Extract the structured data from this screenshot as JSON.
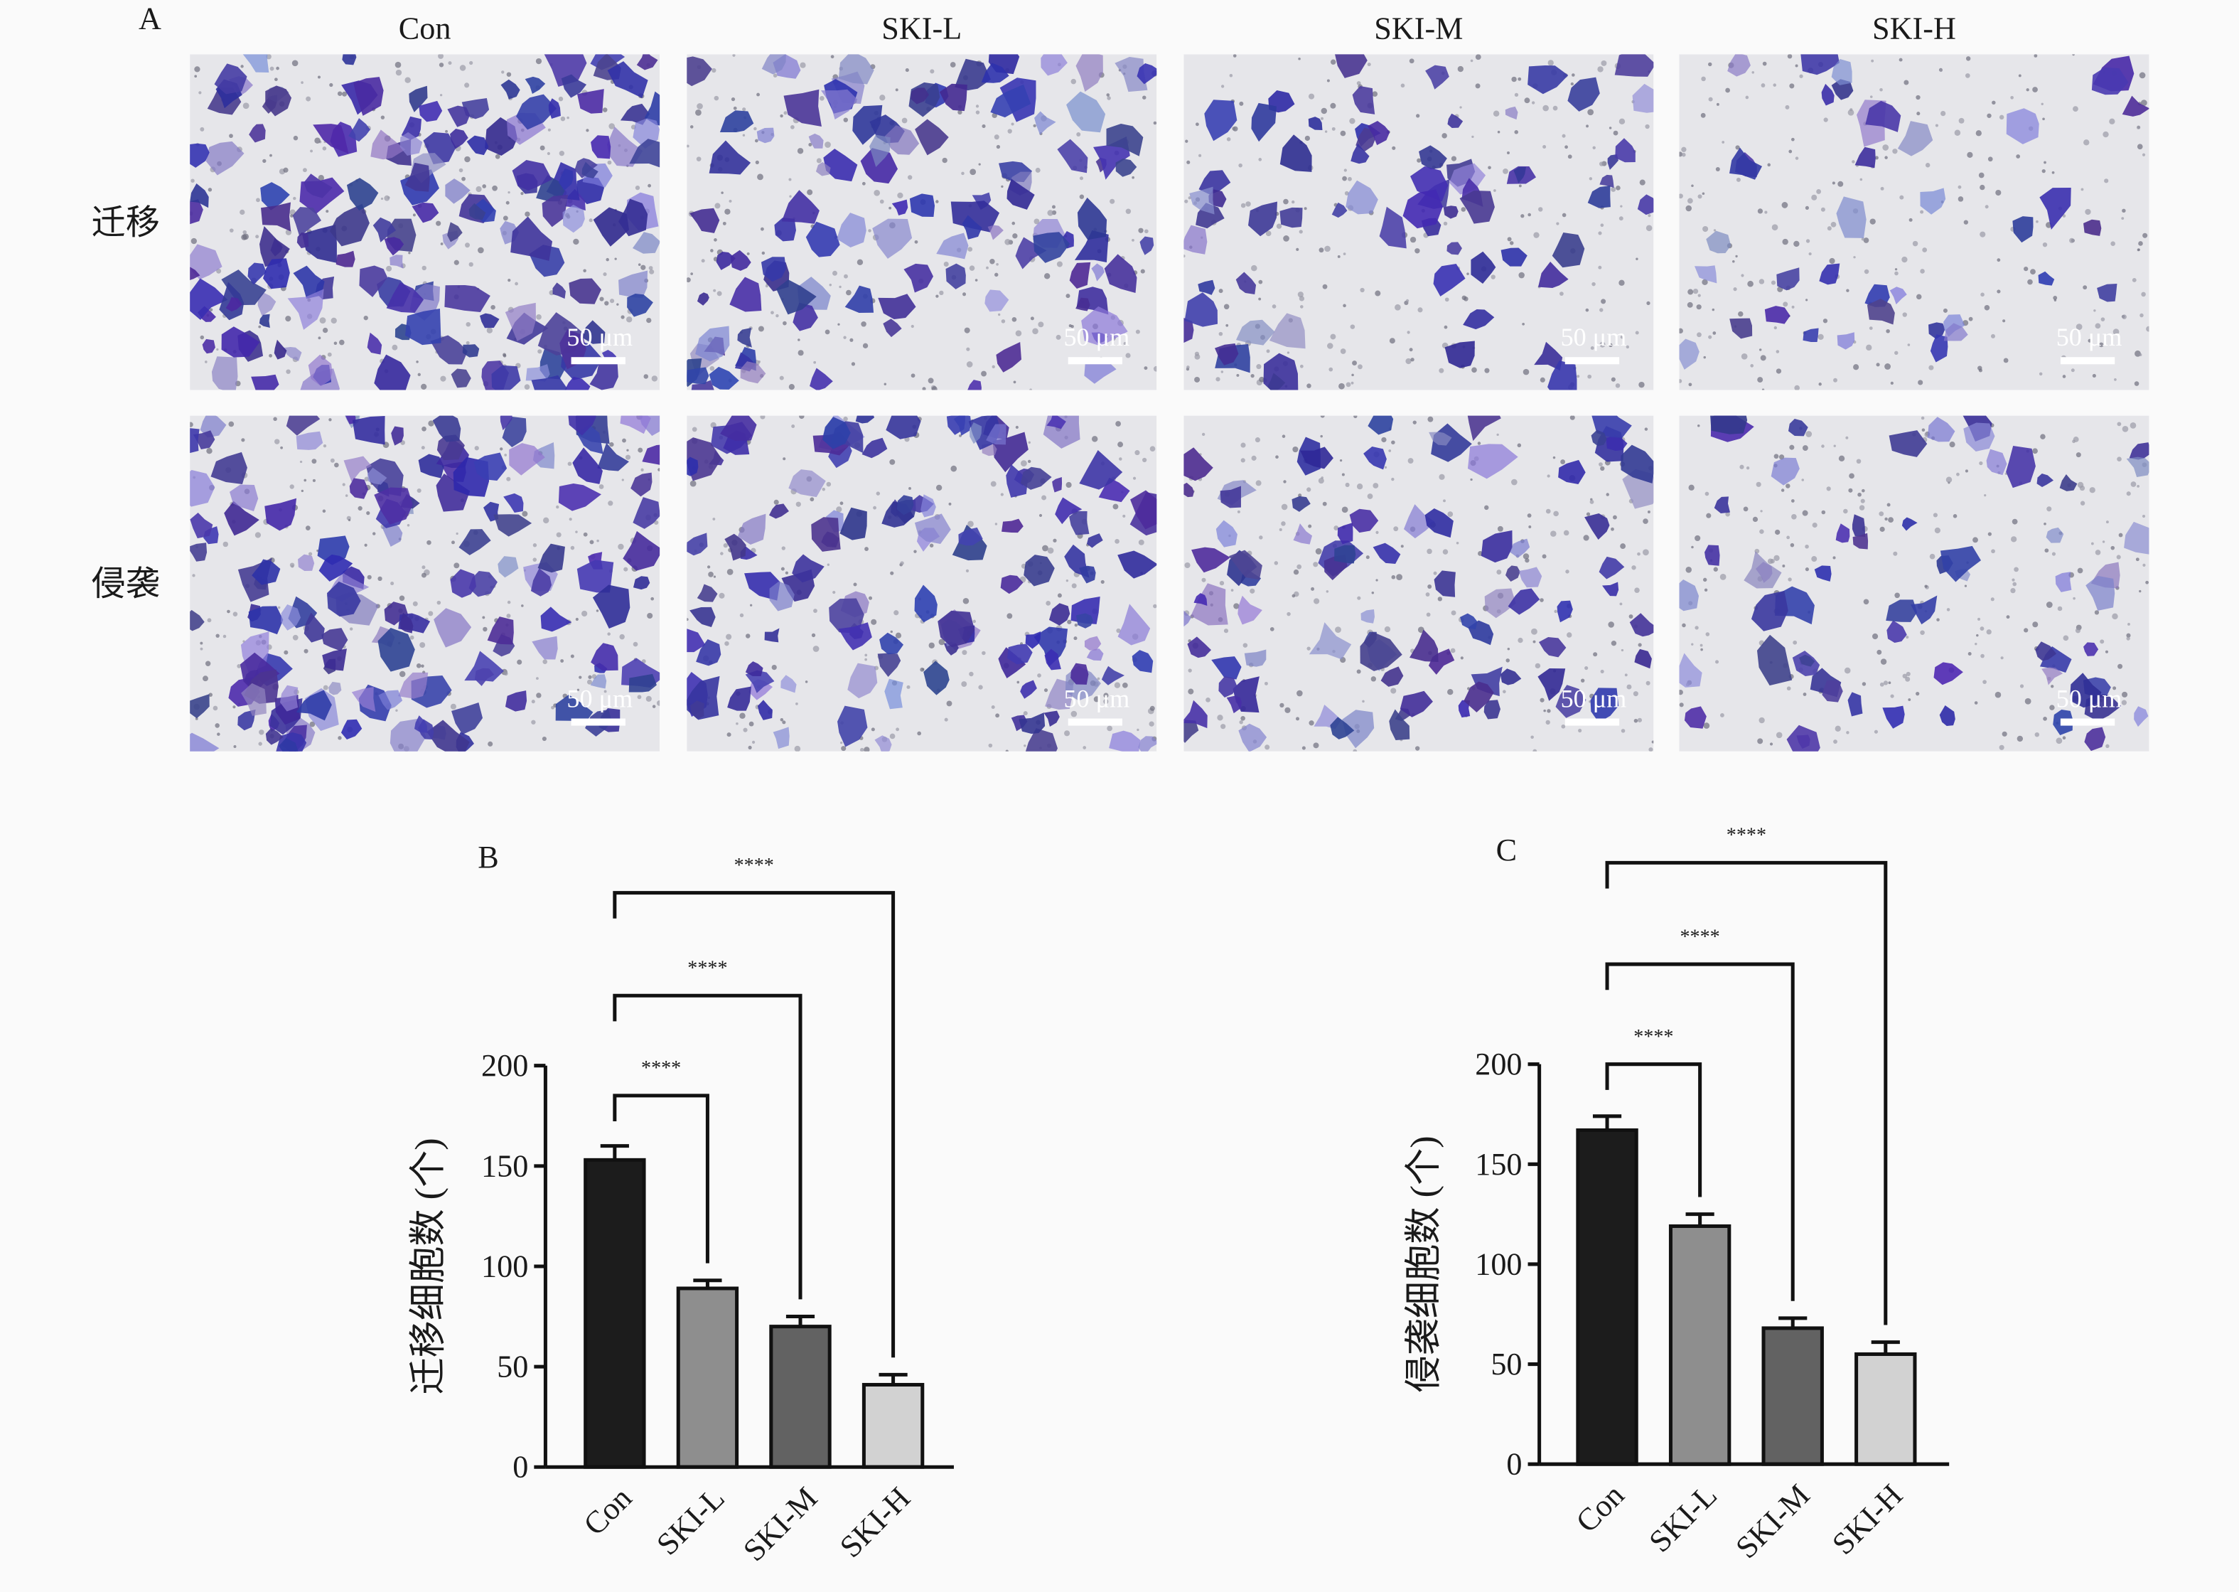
{
  "panel_a": {
    "label": "A",
    "columns": [
      "Con",
      "SKI-L",
      "SKI-M",
      "SKI-H"
    ],
    "rows": [
      "迁移",
      "侵袭"
    ],
    "scale_bar": "50 μm"
  },
  "chart_data": [
    {
      "type": "bar",
      "panel_label": "B",
      "y_label": "迁移细胞数 (个)",
      "categories": [
        "Con",
        "SKI-L",
        "SKI-M",
        "SKI-H"
      ],
      "values": [
        153,
        89,
        70,
        41
      ],
      "errors": [
        7,
        4,
        5,
        5
      ],
      "colors": [
        "#1c1c1c",
        "#8e8e8e",
        "#626262",
        "#d2d2d2"
      ],
      "ylim": [
        0,
        200
      ],
      "yticks": [
        0,
        50,
        100,
        150,
        200
      ],
      "significance": [
        {
          "from": "Con",
          "to": "SKI-L",
          "label": "****"
        },
        {
          "from": "Con",
          "to": "SKI-M",
          "label": "****"
        },
        {
          "from": "Con",
          "to": "SKI-H",
          "label": "****"
        }
      ]
    },
    {
      "type": "bar",
      "panel_label": "C",
      "y_label": "侵袭细胞数 (个)",
      "categories": [
        "Con",
        "SKI-L",
        "SKI-M",
        "SKI-H"
      ],
      "values": [
        167,
        119,
        68,
        55
      ],
      "errors": [
        7,
        6,
        5,
        6
      ],
      "colors": [
        "#1c1c1c",
        "#8e8e8e",
        "#626262",
        "#d2d2d2"
      ],
      "ylim": [
        0,
        200
      ],
      "yticks": [
        0,
        50,
        100,
        150,
        200
      ],
      "significance": [
        {
          "from": "Con",
          "to": "SKI-L",
          "label": "****"
        },
        {
          "from": "Con",
          "to": "SKI-M",
          "label": "****"
        },
        {
          "from": "Con",
          "to": "SKI-H",
          "label": "****"
        }
      ]
    }
  ]
}
